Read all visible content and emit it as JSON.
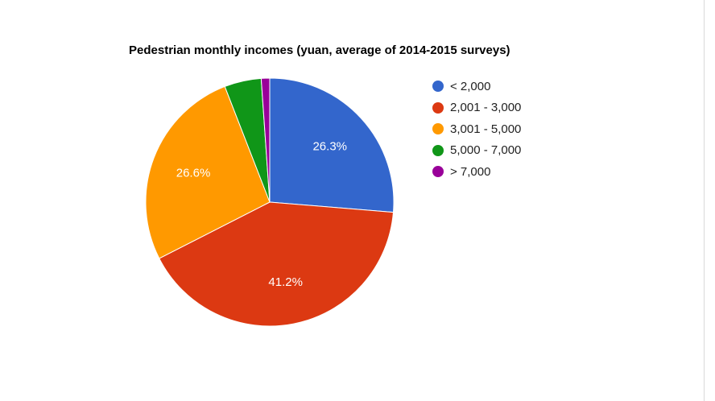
{
  "chart_data": {
    "type": "pie",
    "title": "Pedestrian monthly incomes (yuan, average of 2014-2015 surveys)",
    "categories": [
      "< 2,000",
      "2,001 - 3,000",
      "3,001 - 5,000",
      "5,000 - 7,000",
      "> 7,000"
    ],
    "values": [
      26.3,
      41.2,
      26.6,
      4.8,
      1.1
    ],
    "data_labels": [
      "26.3%",
      "41.2%",
      "26.6%",
      "",
      ""
    ],
    "colors": [
      "#3366cc",
      "#dc3912",
      "#ff9900",
      "#109618",
      "#990099"
    ],
    "legend_position": "right",
    "start_angle": "12 o'clock, clockwise"
  }
}
